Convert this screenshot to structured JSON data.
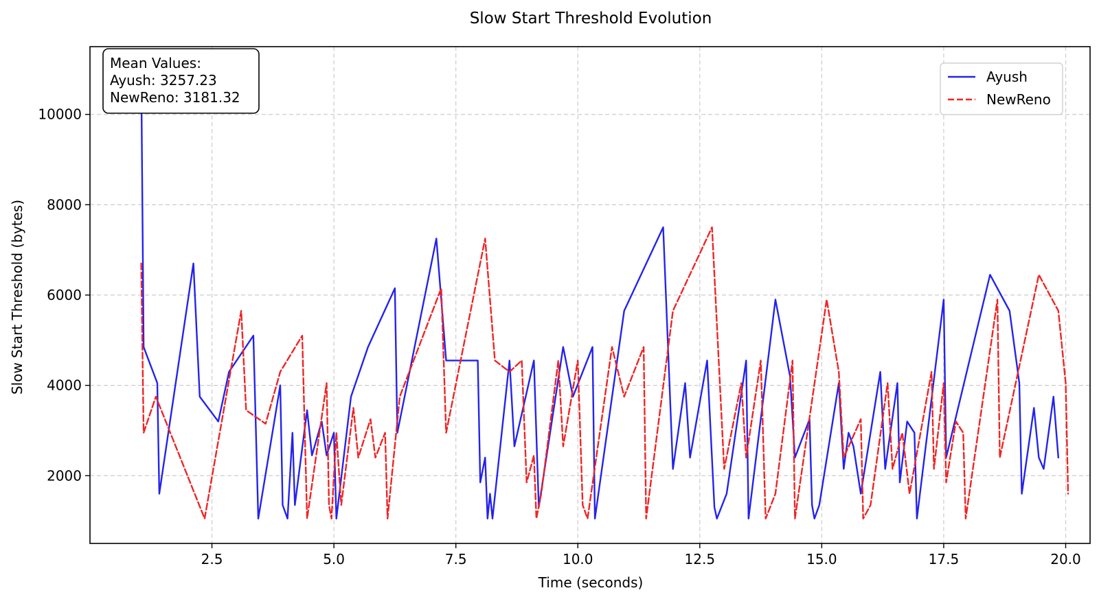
{
  "chart_data": {
    "type": "line",
    "title": "Slow Start Threshold Evolution",
    "xlabel": "Time (seconds)",
    "ylabel": "Slow Start Threshold (bytes)",
    "xlim": [
      0.0,
      20.5
    ],
    "ylim": [
      500,
      11500
    ],
    "xticks": [
      2.5,
      5.0,
      7.5,
      10.0,
      12.5,
      15.0,
      17.5,
      20.0
    ],
    "xtick_labels": [
      "2.5",
      "5.0",
      "7.5",
      "10.0",
      "12.5",
      "15.0",
      "17.5",
      "20.0"
    ],
    "yticks": [
      2000,
      4000,
      6000,
      8000,
      10000
    ],
    "ytick_labels": [
      "2000",
      "4000",
      "6000",
      "8000",
      "10000"
    ],
    "grid": true,
    "legend_position": "top-right",
    "annotation": {
      "lines": [
        "Mean Values:",
        "Ayush: 3257.23",
        "NewReno: 3181.32"
      ]
    },
    "series": [
      {
        "name": "Ayush",
        "color": "#2323ee",
        "style": "solid",
        "x": [
          1.05,
          1.1,
          1.38,
          1.42,
          2.12,
          2.25,
          2.63,
          2.85,
          3.35,
          3.45,
          3.9,
          3.95,
          4.05,
          4.15,
          4.2,
          4.45,
          4.55,
          4.75,
          4.85,
          5.0,
          5.05,
          5.35,
          5.7,
          6.25,
          6.3,
          7.1,
          7.3,
          7.95,
          8.0,
          8.1,
          8.15,
          8.2,
          8.25,
          8.6,
          8.7,
          9.1,
          9.2,
          9.7,
          9.9,
          10.3,
          10.35,
          10.95,
          11.75,
          11.95,
          12.2,
          12.3,
          12.65,
          12.8,
          12.85,
          13.05,
          13.45,
          13.5,
          14.05,
          14.35,
          14.45,
          14.75,
          14.8,
          14.85,
          14.95,
          15.35,
          15.45,
          15.55,
          15.65,
          15.8,
          16.2,
          16.3,
          16.55,
          16.6,
          16.75,
          16.9,
          16.95,
          17.5,
          17.55,
          18.45,
          18.85,
          19.05,
          19.1,
          19.35,
          19.45,
          19.55,
          19.75,
          19.85
        ],
        "y": [
          11000,
          4850,
          4050,
          1600,
          6700,
          3750,
          3200,
          4300,
          5100,
          1050,
          4000,
          1350,
          1050,
          2950,
          1350,
          3450,
          2450,
          3200,
          2450,
          2950,
          1050,
          3750,
          4850,
          6150,
          2950,
          7250,
          4550,
          4550,
          1850,
          2400,
          1050,
          1600,
          1050,
          4550,
          2650,
          4550,
          1300,
          4850,
          3750,
          4850,
          1050,
          5650,
          7500,
          2150,
          4050,
          2400,
          4550,
          1300,
          1050,
          1600,
          4550,
          1050,
          5900,
          4200,
          2400,
          3250,
          1350,
          1050,
          1350,
          4050,
          2150,
          2950,
          2650,
          1600,
          4300,
          2150,
          4050,
          1850,
          3200,
          2950,
          1050,
          5900,
          2400,
          6450,
          5650,
          4050,
          1600,
          3500,
          2400,
          2150,
          3750,
          2400
        ]
      },
      {
        "name": "NewReno",
        "color": "#ef2525",
        "style": "dashed",
        "x": [
          1.05,
          1.1,
          1.35,
          2.35,
          3.1,
          3.2,
          3.6,
          3.9,
          4.35,
          4.45,
          4.85,
          4.9,
          4.95,
          5.05,
          5.15,
          5.4,
          5.5,
          5.75,
          5.85,
          6.05,
          6.1,
          6.35,
          7.2,
          7.3,
          8.1,
          8.3,
          8.6,
          8.85,
          8.95,
          9.1,
          9.15,
          9.25,
          9.6,
          9.7,
          10.0,
          10.1,
          10.2,
          10.7,
          10.95,
          11.35,
          11.4,
          11.95,
          12.75,
          13.0,
          13.35,
          13.45,
          13.75,
          13.85,
          14.05,
          14.4,
          14.45,
          15.1,
          15.35,
          15.45,
          15.8,
          15.85,
          16.0,
          16.35,
          16.45,
          16.65,
          16.8,
          17.25,
          17.3,
          17.5,
          17.55,
          17.75,
          17.9,
          17.95,
          18.6,
          18.65,
          19.45,
          19.85,
          20.0,
          20.05
        ],
        "y": [
          6700,
          2950,
          3750,
          1050,
          5650,
          3450,
          3150,
          4300,
          5100,
          1050,
          4050,
          1350,
          1050,
          2950,
          1350,
          3500,
          2400,
          3250,
          2400,
          2950,
          1050,
          3750,
          6150,
          2950,
          7250,
          4550,
          4300,
          4550,
          1850,
          2450,
          1050,
          1600,
          4550,
          2650,
          4550,
          1350,
          1050,
          4850,
          3750,
          4850,
          1050,
          5650,
          7500,
          2150,
          4050,
          2400,
          4550,
          1050,
          1600,
          4550,
          1050,
          5900,
          4300,
          2400,
          3250,
          1050,
          1350,
          4050,
          2150,
          2950,
          1600,
          4300,
          2150,
          4050,
          1850,
          3200,
          2950,
          1050,
          5900,
          2400,
          6450,
          5650,
          4050,
          1600
        ]
      }
    ]
  }
}
